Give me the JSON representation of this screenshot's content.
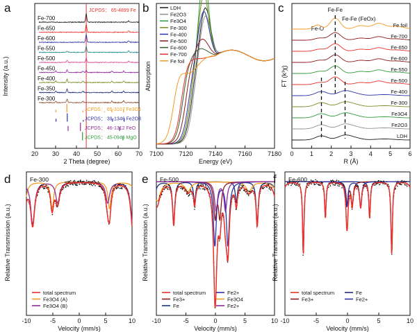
{
  "colors": {
    "red": "#e8312a",
    "orange": "#f39a1e",
    "black": "#1a1a1a",
    "blue": "#2b31a8",
    "green": "#2f9a3a",
    "purple": "#8e2d9a",
    "magenta": "#d84c9a",
    "olive": "#7c8a1f",
    "grey": "#8f8f8f",
    "darkred": "#8b1a1a",
    "darkgreen": "#2f5f2f",
    "brown": "#8b4a2a",
    "teal": "#1f8c8c",
    "navy": "#1f2f7a"
  },
  "chart_data": [
    {
      "panel": "a",
      "type": "line",
      "xlabel": "2 Theta (degree)",
      "ylabel": "Intensity (a.u.)",
      "xlim": [
        20,
        70
      ],
      "xticks": [
        "20",
        "30",
        "40",
        "50",
        "60",
        "70"
      ],
      "series": [
        {
          "name": "Fe-700",
          "color": "#1a1a1a",
          "peaks": [
            44.7,
            65.0
          ],
          "heights": [
            12,
            2
          ]
        },
        {
          "name": "Fe-650",
          "color": "#e8312a",
          "peaks": [
            44.7,
            65.0
          ],
          "heights": [
            12,
            2
          ]
        },
        {
          "name": "Fe-600",
          "color": "#2b31a8",
          "peaks": [
            44.7,
            65.0
          ],
          "heights": [
            11,
            2
          ]
        },
        {
          "name": "Fe-550",
          "color": "#1f8c8c",
          "peaks": [
            35.5,
            44.7,
            65.0
          ],
          "heights": [
            2,
            9,
            2
          ]
        },
        {
          "name": "Fe-500",
          "color": "#d84c9a",
          "peaks": [
            35.5,
            44.7,
            65.0
          ],
          "heights": [
            3,
            6,
            2
          ]
        },
        {
          "name": "Fe-450",
          "color": "#8e2d9a",
          "peaks": [
            30.1,
            35.5,
            43.1,
            44.7,
            57.0,
            62.6
          ],
          "heights": [
            2,
            4,
            2,
            3,
            2,
            2
          ]
        },
        {
          "name": "Fe-400",
          "color": "#7c8a1f",
          "peaks": [
            30.1,
            35.5,
            43.1,
            57.0,
            62.6
          ],
          "heights": [
            2,
            5,
            2,
            2,
            2
          ]
        },
        {
          "name": "Fe-350",
          "color": "#1f2f7a",
          "peaks": [
            30.1,
            35.5,
            43.1,
            57.0,
            62.6
          ],
          "heights": [
            2,
            5,
            2,
            2,
            2
          ]
        },
        {
          "name": "Fe-300",
          "color": "#8b4a2a",
          "peaks": [
            30.1,
            35.5,
            43.1,
            57.0,
            62.6
          ],
          "heights": [
            2,
            5,
            2,
            2,
            3
          ]
        }
      ],
      "references": [
        {
          "label": "JCPDS： 65-4899 Fe",
          "color": "#e8312a",
          "sticks": [
            44.7,
            65.0
          ],
          "heights": [
            1,
            0.2
          ]
        },
        {
          "label": "JCPDS： 65-3107 Fe3O4",
          "color": "#f39a1e",
          "sticks": [
            30.1,
            35.4,
            43.1,
            53.5,
            57.0,
            62.6
          ],
          "heights": [
            0.3,
            1,
            0.2,
            0.1,
            0.3,
            0.4
          ]
        },
        {
          "label": "JCPDS： 39-1346 Fe2O3",
          "color": "#2b31a8",
          "sticks": [
            30.2,
            35.6,
            43.3,
            57.3,
            62.9
          ],
          "heights": [
            0.35,
            1,
            0.2,
            0.3,
            0.4
          ]
        },
        {
          "label": "JCPDS： 46-1312 FeO",
          "color": "#8e2d9a",
          "sticks": [
            36.0,
            41.9,
            60.7
          ],
          "heights": [
            0.6,
            1,
            0.5
          ]
        },
        {
          "label": "JCPDS： 45-0946 MgO",
          "color": "#2f9a3a",
          "sticks": [
            42.9,
            62.3
          ],
          "heights": [
            1,
            0.5
          ]
        }
      ]
    },
    {
      "panel": "b",
      "type": "line",
      "xlabel": "Energy (eV)",
      "ylabel": "Absorption",
      "xlim": [
        7100,
        7180
      ],
      "xticks": [
        "7100",
        "7120",
        "7140",
        "7160",
        "7180"
      ],
      "series": [
        {
          "name": "LDH",
          "color": "#1a1a1a"
        },
        {
          "name": "Fe2O3",
          "color": "#8f8f8f"
        },
        {
          "name": "Fe3O4",
          "color": "#2f9a3a"
        },
        {
          "name": "Fe-300",
          "color": "#7c8a1f"
        },
        {
          "name": "Fe-400",
          "color": "#2b31a8"
        },
        {
          "name": "Fe-500",
          "color": "#8b1a1a"
        },
        {
          "name": "Fe-600",
          "color": "#2f5f2f"
        },
        {
          "name": "Fe-700",
          "color": "#e8312a"
        },
        {
          "name": "Fe foil",
          "color": "#f39a1e"
        }
      ]
    },
    {
      "panel": "c",
      "type": "line",
      "xlabel": "R (Å)",
      "ylabel": "FT (k³χ)",
      "xlim": [
        0,
        6
      ],
      "xticks": [
        "0",
        "1",
        "2",
        "3",
        "4",
        "5",
        "6"
      ],
      "annotations": [
        "Fe-Fe",
        "Fe-O",
        "Fe-Fe (FeOx)"
      ],
      "series": [
        {
          "name": "Fe foil",
          "color": "#f39a1e"
        },
        {
          "name": "Fe-700",
          "color": "#8b1a1a"
        },
        {
          "name": "Fe-650",
          "color": "#e8312a"
        },
        {
          "name": "Fe-600",
          "color": "#8b1a1a"
        },
        {
          "name": "Fe-550",
          "color": "#2f9a3a"
        },
        {
          "name": "Fe-500",
          "color": "#e8312a"
        },
        {
          "name": "Fe-400",
          "color": "#2b31a8"
        },
        {
          "name": "Fe-300",
          "color": "#7c8a1f"
        },
        {
          "name": "Fe3O4",
          "color": "#2f9a3a"
        },
        {
          "name": "Fe2O3",
          "color": "#8f8f8f"
        },
        {
          "name": "LDH",
          "color": "#1a1a1a"
        }
      ]
    },
    {
      "panel": "d",
      "title": "Fe-300",
      "type": "line",
      "xlabel": "Velocity (mm/s)",
      "ylabel": "Relative Transmission (a.u.)",
      "xlim": [
        -10,
        10
      ],
      "xticks": [
        "-10",
        "-5",
        "0",
        "5",
        "10"
      ],
      "legend": [
        {
          "name": "total spectrum",
          "color": "#e8312a"
        },
        {
          "name": "Fe3O4 (A)",
          "color": "#f39a1e"
        },
        {
          "name": "Fe3O4 (B)",
          "color": "#8e2d9a"
        }
      ]
    },
    {
      "panel": "e",
      "title": "Fe-500",
      "type": "line",
      "xlabel": "Velocity (mm/s)",
      "ylabel": "Relative Transmission (a.u.)",
      "xlim": [
        -10,
        10
      ],
      "xticks": [
        "-10",
        "-5",
        "0",
        "5",
        "10"
      ],
      "legend": [
        {
          "name": "total spectrum",
          "color": "#e8312a"
        },
        {
          "name": "Fe2+",
          "color": "#2b31a8"
        },
        {
          "name": "Fe3+",
          "color": "#8b1a1a"
        },
        {
          "name": "Fe3O4",
          "color": "#f39a1e"
        },
        {
          "name": "Fe",
          "color": "#1f2f7a"
        },
        {
          "name": "Fe2+",
          "color": "#8e2d9a"
        }
      ]
    },
    {
      "panel": "f",
      "title": "Fe-600",
      "type": "line",
      "xlabel": "Velocity (mm/s)",
      "ylabel": "Relative Transmission (a.u.)",
      "xlim": [
        -10,
        10
      ],
      "xticks": [
        "-10",
        "-5",
        "0",
        "5",
        "10"
      ],
      "legend": [
        {
          "name": "total spectrum",
          "color": "#e8312a"
        },
        {
          "name": "Fe",
          "color": "#1f2f7a"
        },
        {
          "name": "Fe3+",
          "color": "#8b1a1a"
        },
        {
          "name": "Fe2+",
          "color": "#2b31a8"
        }
      ]
    }
  ]
}
